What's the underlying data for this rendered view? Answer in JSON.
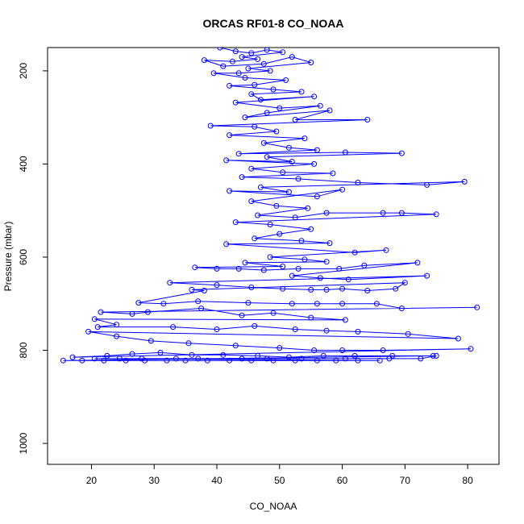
{
  "chart_data": {
    "type": "scatter",
    "title": "ORCAS RF01-8 CO_NOAA",
    "xlabel": "CO_NOAA",
    "ylabel": "Pressure (mbar)",
    "xlim": [
      13,
      85
    ],
    "ylim": [
      1045,
      150
    ],
    "y_axis_reversed": true,
    "x_ticks": [
      20,
      30,
      40,
      50,
      60,
      70,
      80
    ],
    "y_ticks": [
      200,
      400,
      600,
      800,
      1000
    ],
    "grid": false,
    "legend": "none",
    "color": "#0000ff",
    "marker": "open-circle",
    "lines_connect_points": true,
    "series": [
      {
        "values": [
          [
            40.5,
            150
          ],
          [
            43.0,
            158
          ],
          [
            45.5,
            162
          ],
          [
            48.0,
            155
          ],
          [
            50.5,
            160
          ],
          [
            44.0,
            170
          ],
          [
            46.5,
            175
          ],
          [
            42.5,
            180
          ],
          [
            38.0,
            177
          ],
          [
            41.0,
            190
          ],
          [
            47.5,
            185
          ],
          [
            52.0,
            170
          ],
          [
            55.0,
            182
          ],
          [
            45.0,
            195
          ],
          [
            48.5,
            200
          ],
          [
            43.5,
            205
          ],
          [
            39.5,
            205
          ],
          [
            44.5,
            215
          ],
          [
            51.0,
            220
          ],
          [
            46.0,
            230
          ],
          [
            42.0,
            232
          ],
          [
            49.0,
            240
          ],
          [
            53.5,
            245
          ],
          [
            45.5,
            250
          ],
          [
            47.0,
            262
          ],
          [
            55.5,
            255
          ],
          [
            43.0,
            268
          ],
          [
            50.0,
            280
          ],
          [
            56.5,
            275
          ],
          [
            48.0,
            290
          ],
          [
            44.5,
            300
          ],
          [
            58.0,
            285
          ],
          [
            52.5,
            305
          ],
          [
            64.0,
            305
          ],
          [
            39.0,
            318
          ],
          [
            46.0,
            320
          ],
          [
            49.5,
            330
          ],
          [
            42.0,
            338
          ],
          [
            54.0,
            345
          ],
          [
            47.5,
            355
          ],
          [
            51.5,
            365
          ],
          [
            56.0,
            370
          ],
          [
            43.5,
            378
          ],
          [
            60.5,
            375
          ],
          [
            69.5,
            377
          ],
          [
            48.0,
            385
          ],
          [
            52.0,
            395
          ],
          [
            41.5,
            392
          ],
          [
            55.5,
            400
          ],
          [
            45.5,
            410
          ],
          [
            50.5,
            418
          ],
          [
            58.5,
            420
          ],
          [
            44.0,
            428
          ],
          [
            53.0,
            432
          ],
          [
            62.5,
            440
          ],
          [
            73.5,
            445
          ],
          [
            79.5,
            438
          ],
          [
            47.0,
            450
          ],
          [
            51.5,
            460
          ],
          [
            42.0,
            458
          ],
          [
            56.0,
            470
          ],
          [
            60.0,
            455
          ],
          [
            45.5,
            480
          ],
          [
            49.5,
            490
          ],
          [
            54.5,
            495
          ],
          [
            46.5,
            510
          ],
          [
            52.5,
            515
          ],
          [
            57.5,
            505
          ],
          [
            66.5,
            505
          ],
          [
            69.5,
            505
          ],
          [
            75.0,
            508
          ],
          [
            43.0,
            525
          ],
          [
            48.5,
            530
          ],
          [
            55.0,
            540
          ],
          [
            50.0,
            550
          ],
          [
            46.0,
            560
          ],
          [
            53.5,
            565
          ],
          [
            58.0,
            570
          ],
          [
            41.5,
            572
          ],
          [
            62.0,
            590
          ],
          [
            67.0,
            585
          ],
          [
            48.5,
            600
          ],
          [
            54.0,
            605
          ],
          [
            57.5,
            610
          ],
          [
            44.5,
            612
          ],
          [
            50.5,
            620
          ],
          [
            36.5,
            622
          ],
          [
            40.0,
            625
          ],
          [
            43.5,
            625
          ],
          [
            47.5,
            628
          ],
          [
            53.0,
            625
          ],
          [
            59.5,
            625
          ],
          [
            63.5,
            618
          ],
          [
            72.0,
            612
          ],
          [
            52.0,
            640
          ],
          [
            56.5,
            645
          ],
          [
            61.0,
            648
          ],
          [
            73.5,
            640
          ],
          [
            32.5,
            655
          ],
          [
            40.0,
            660
          ],
          [
            45.5,
            665
          ],
          [
            50.5,
            668
          ],
          [
            55.0,
            670
          ],
          [
            57.5,
            670
          ],
          [
            60.0,
            668
          ],
          [
            64.0,
            672
          ],
          [
            68.5,
            668
          ],
          [
            70.0,
            655
          ],
          [
            36.0,
            670
          ],
          [
            38.0,
            672
          ],
          [
            27.5,
            698
          ],
          [
            31.5,
            700
          ],
          [
            37.0,
            695
          ],
          [
            45.0,
            698
          ],
          [
            52.0,
            700
          ],
          [
            56.0,
            700
          ],
          [
            60.0,
            700
          ],
          [
            65.5,
            700
          ],
          [
            69.5,
            710
          ],
          [
            81.5,
            708
          ],
          [
            21.5,
            718
          ],
          [
            26.5,
            722
          ],
          [
            29.0,
            718
          ],
          [
            37.5,
            710
          ],
          [
            44.0,
            725
          ],
          [
            49.0,
            720
          ],
          [
            55.0,
            730
          ],
          [
            60.5,
            735
          ],
          [
            20.5,
            733
          ],
          [
            24.0,
            745
          ],
          [
            21.0,
            750
          ],
          [
            33.0,
            750
          ],
          [
            40.0,
            755
          ],
          [
            46.0,
            748
          ],
          [
            52.5,
            755
          ],
          [
            57.5,
            758
          ],
          [
            62.5,
            760
          ],
          [
            70.5,
            765
          ],
          [
            78.5,
            775
          ],
          [
            19.5,
            760
          ],
          [
            24.0,
            770
          ],
          [
            29.5,
            780
          ],
          [
            35.5,
            785
          ],
          [
            43.0,
            790
          ],
          [
            50.0,
            795
          ],
          [
            55.5,
            800
          ],
          [
            60.0,
            800
          ],
          [
            66.5,
            800
          ],
          [
            80.5,
            797
          ],
          [
            17.0,
            815
          ],
          [
            22.5,
            812
          ],
          [
            26.5,
            808
          ],
          [
            31.0,
            805
          ],
          [
            36.0,
            810
          ],
          [
            41.0,
            810
          ],
          [
            46.5,
            812
          ],
          [
            51.5,
            815
          ],
          [
            57.0,
            812
          ],
          [
            62.0,
            812
          ],
          [
            68.0,
            812
          ],
          [
            74.5,
            812
          ],
          [
            15.5,
            822
          ],
          [
            18.5,
            822
          ],
          [
            22.0,
            822
          ],
          [
            25.5,
            822
          ],
          [
            28.5,
            822
          ],
          [
            32.0,
            822
          ],
          [
            35.0,
            822
          ],
          [
            38.5,
            822
          ],
          [
            42.0,
            822
          ],
          [
            45.5,
            822
          ],
          [
            49.0,
            822
          ],
          [
            52.5,
            822
          ],
          [
            56.0,
            822
          ],
          [
            59.0,
            822
          ],
          [
            62.5,
            822
          ],
          [
            66.0,
            822
          ],
          [
            20.5,
            818
          ],
          [
            24.5,
            818
          ],
          [
            28.0,
            818
          ],
          [
            33.5,
            818
          ],
          [
            37.0,
            818
          ],
          [
            44.0,
            818
          ],
          [
            48.0,
            818
          ],
          [
            53.5,
            818
          ],
          [
            60.5,
            818
          ],
          [
            67.5,
            818
          ],
          [
            72.5,
            818
          ],
          [
            75.0,
            812
          ]
        ]
      }
    ]
  }
}
